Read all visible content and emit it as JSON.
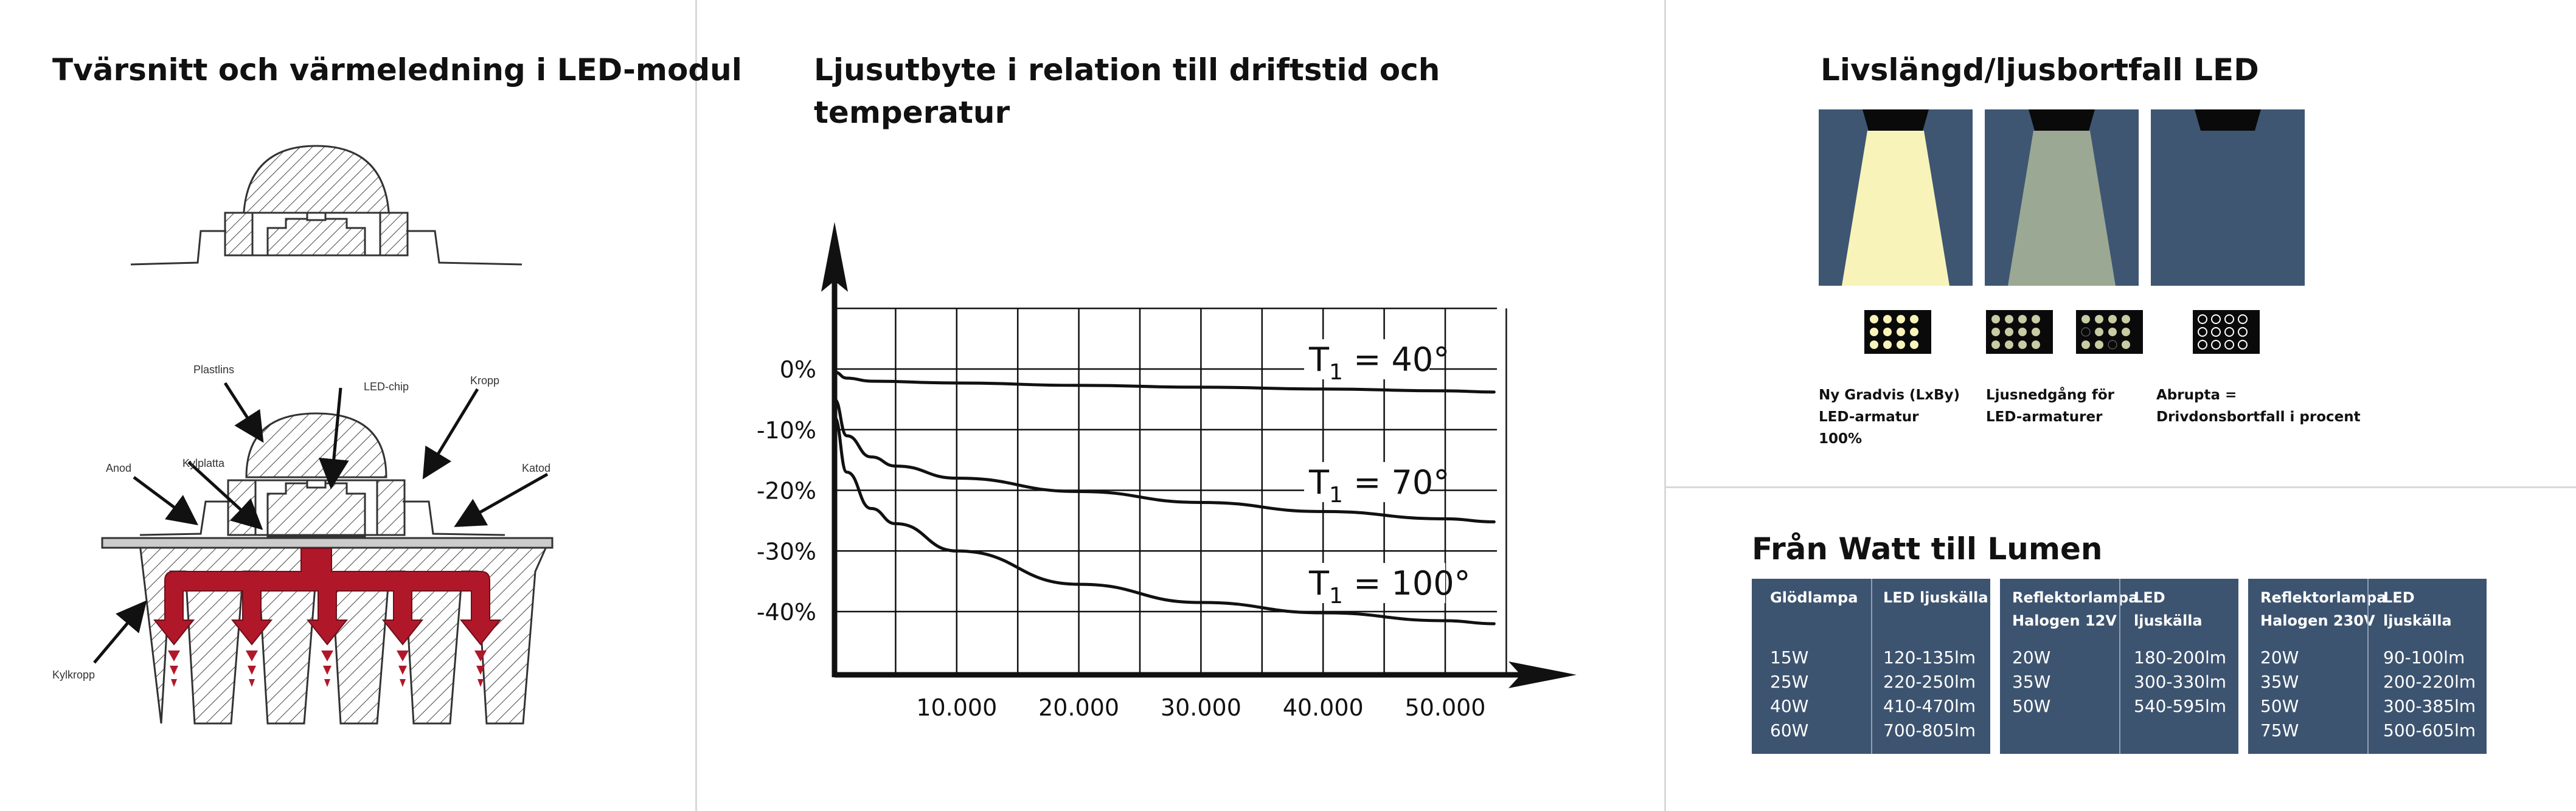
{
  "left_panel": {
    "title": "Tvärsnitt och värmeledning i LED-modul",
    "labels": {
      "plastlins": "Plastlins",
      "led_chip": "LED-chip",
      "kropp": "Kropp",
      "anod": "Anod",
      "kylplatta": "Kylplatta",
      "katod": "Katod",
      "kylkropp": "Kylkropp"
    },
    "colors": {
      "heat_arrow": "#b0182a",
      "line": "#333333"
    }
  },
  "middle_panel": {
    "title_line1": "Ljusutbyte i relation till driftstid och",
    "title_line2": "temperatur"
  },
  "chart_data": {
    "type": "line",
    "title": "Ljusutbyte i relation till driftstid och temperatur",
    "xlabel": "",
    "ylabel": "",
    "x_ticks": [
      "10.000",
      "20.000",
      "30.000",
      "40.000",
      "50.000"
    ],
    "y_ticks": [
      "0%",
      "-10%",
      "-20%",
      "-30%",
      "-40%"
    ],
    "xlim": [
      0,
      55000
    ],
    "ylim": [
      -50,
      10
    ],
    "grid": true,
    "series": [
      {
        "name": "T1 = 40°",
        "label_main": "T",
        "label_sub": "1",
        "label_rest": " = 40°",
        "x": [
          0,
          1000,
          3000,
          10000,
          20000,
          30000,
          40000,
          50000,
          54000
        ],
        "y": [
          -0.5,
          -1.5,
          -2,
          -2.3,
          -2.7,
          -3,
          -3.3,
          -3.6,
          -3.8
        ]
      },
      {
        "name": "T1 = 70°",
        "label_main": "T",
        "label_sub": "1",
        "label_rest": " = 70°",
        "x": [
          0,
          1000,
          3000,
          5000,
          10000,
          20000,
          30000,
          40000,
          50000,
          54000
        ],
        "y": [
          -5,
          -11,
          -14.5,
          -16,
          -18,
          -20.2,
          -22,
          -23.5,
          -24.7,
          -25.2
        ]
      },
      {
        "name": "T1 = 100°",
        "label_main": "T",
        "label_sub": "1",
        "label_rest": " = 100°",
        "x": [
          0,
          1000,
          3000,
          5000,
          10000,
          20000,
          30000,
          40000,
          50000,
          54000
        ],
        "y": [
          -8,
          -17,
          -23,
          -25.5,
          -30,
          -35.5,
          -38.5,
          -40.2,
          -41.5,
          -42
        ]
      }
    ]
  },
  "right_top": {
    "title": "Livslängd/ljusbortfall LED",
    "captions": [
      "Ny Gradvis (LxBy)\nLED-armatur\n100%",
      "Ljusnedgång för\nLED-armaturer",
      "Abrupta =\nDrivdonsbortfall i procent"
    ],
    "colors": {
      "panel": "#3e5672",
      "beam_bright": "#f8f3b8",
      "beam_dim": "#9ba893",
      "lamp": "#0a0a0a"
    }
  },
  "right_bottom": {
    "title": "Från Watt till Lumen",
    "tables": [
      {
        "head_left": "Glödlampa",
        "head_right": "LED ljuskälla",
        "left": [
          "15W",
          "25W",
          "40W",
          "60W"
        ],
        "right": [
          "120-135lm",
          "220-250lm",
          "410-470lm",
          "700-805lm"
        ]
      },
      {
        "head_left": "Reflektorlampa\nHalogen 12V",
        "head_right": "LED ljuskälla",
        "left": [
          "20W",
          "35W",
          "50W"
        ],
        "right": [
          "180-200lm",
          "300-330lm",
          "540-595lm"
        ]
      },
      {
        "head_left": "Reflektorlampa\nHalogen 230V",
        "head_right": "LED ljuskälla",
        "left": [
          "20W",
          "35W",
          "50W",
          "75W"
        ],
        "right": [
          "90-100lm",
          "200-220lm",
          "300-385lm",
          "500-605lm"
        ]
      }
    ],
    "colors": {
      "table_bg": "#3d5470",
      "text": "#ffffff"
    }
  }
}
